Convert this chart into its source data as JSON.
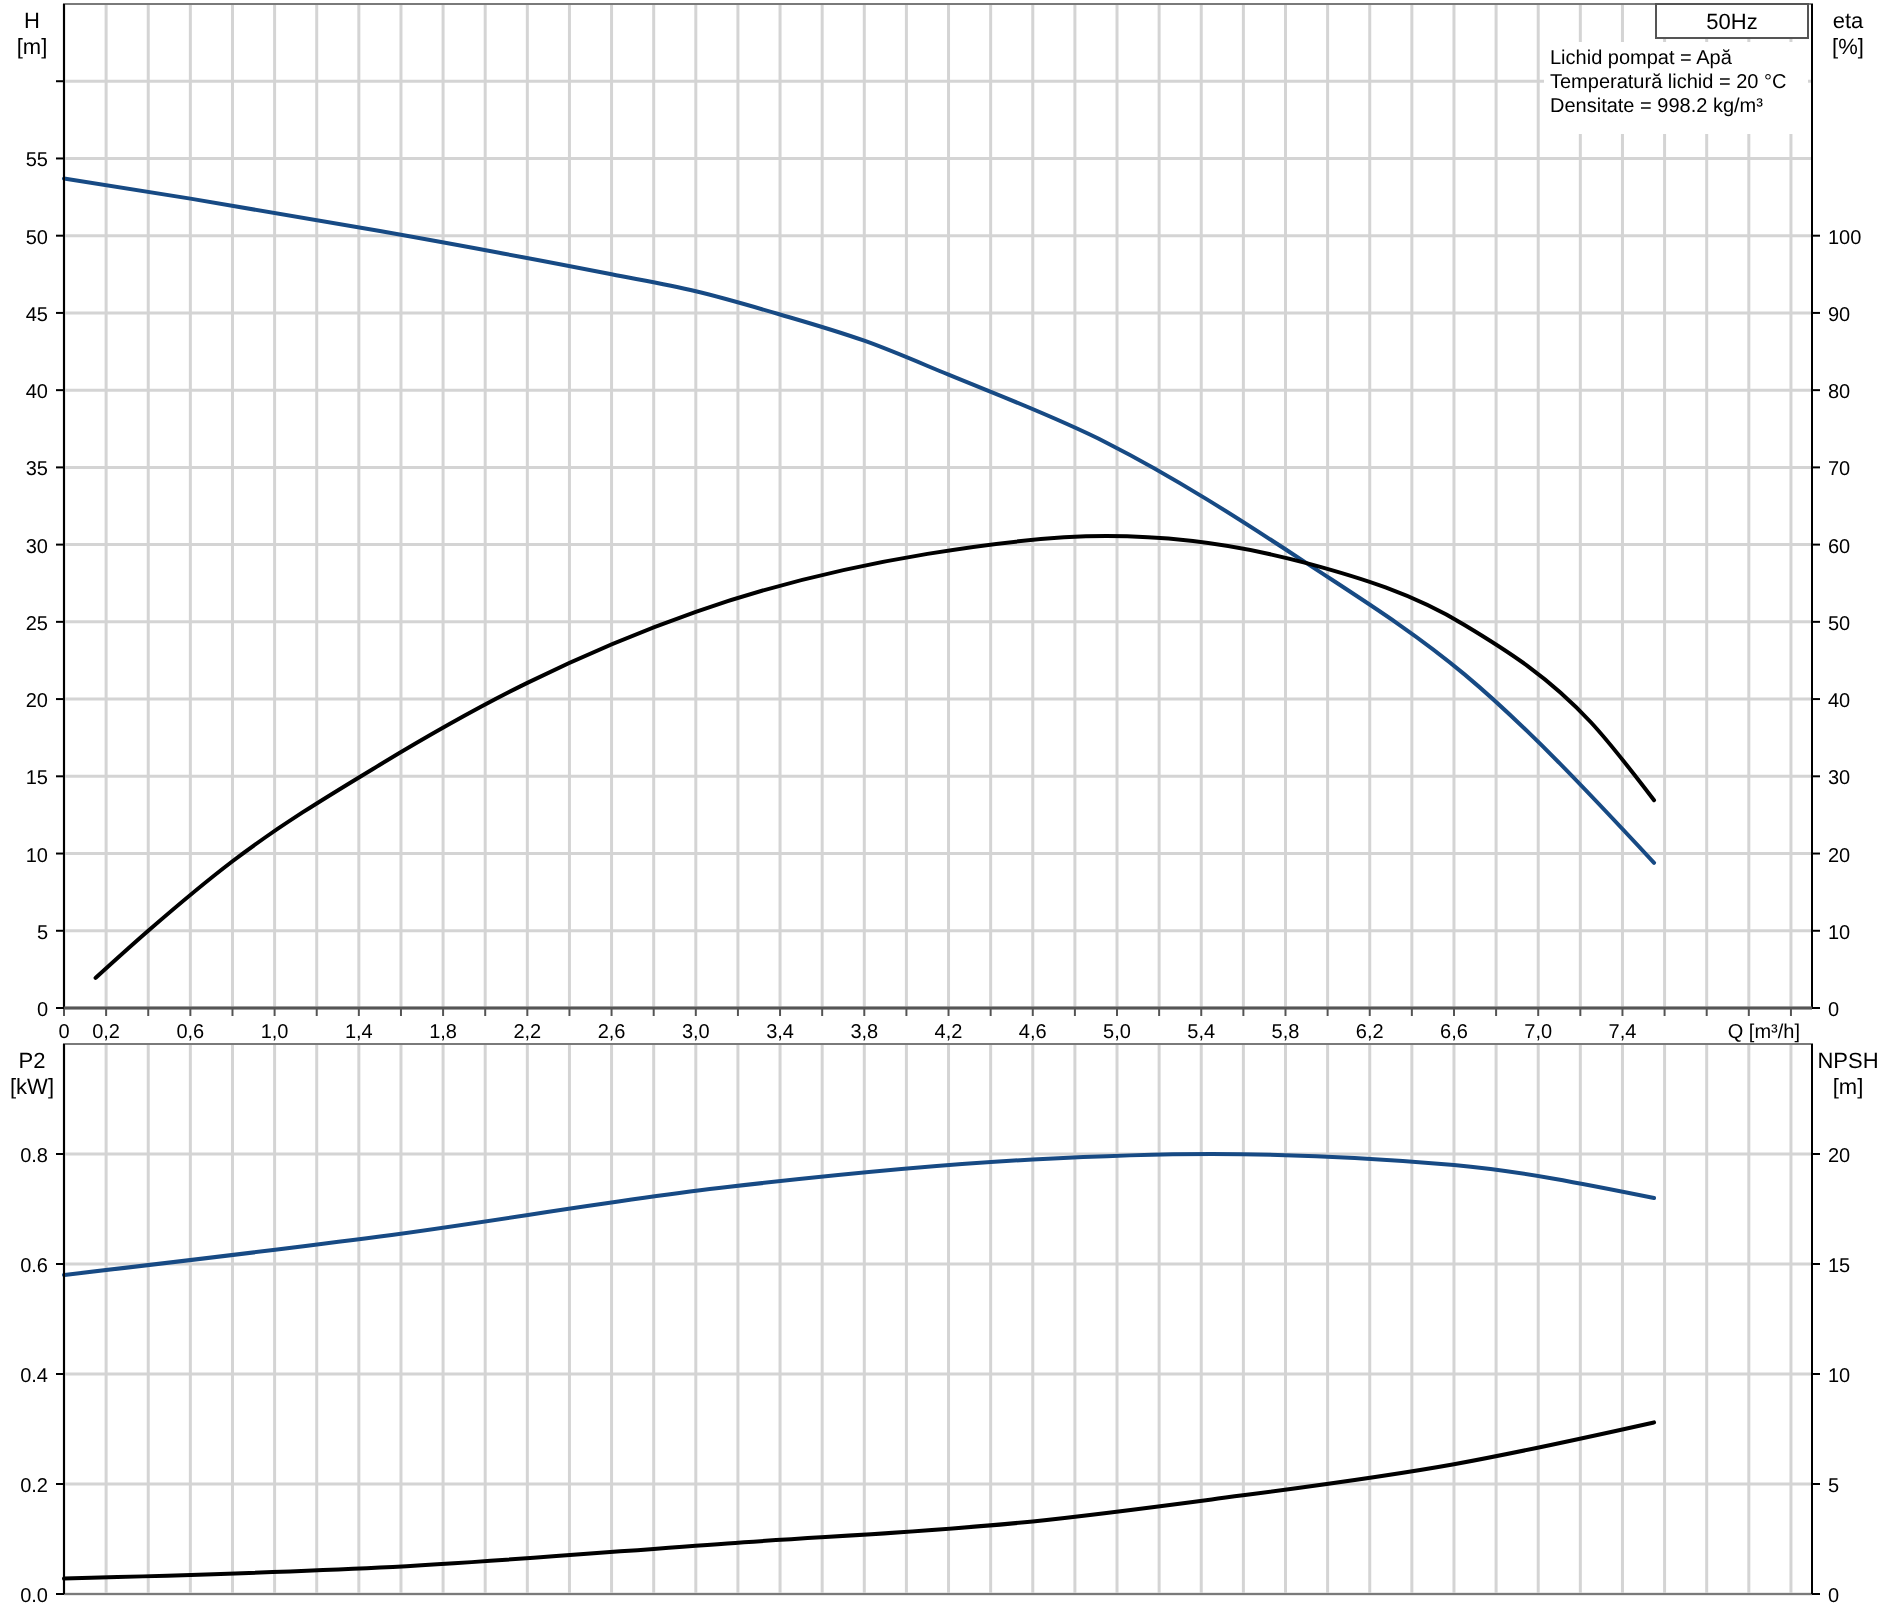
{
  "chart_data": [
    {
      "type": "line",
      "title": "50Hz",
      "xlabel": "Q [m³/h]",
      "ylabel": "H\n[m]",
      "y2label": "eta\n[%]",
      "xlim": [
        0,
        8.3
      ],
      "xticks": [
        {
          "value": 0,
          "label": "0"
        },
        {
          "value": 0.2,
          "label": "0,2"
        },
        {
          "value": 0.4,
          "label": null
        },
        {
          "value": 0.6,
          "label": "0,6"
        },
        {
          "value": 0.8,
          "label": null
        },
        {
          "value": 1.0,
          "label": "1,0"
        },
        {
          "value": 1.2,
          "label": null
        },
        {
          "value": 1.4,
          "label": "1,4"
        },
        {
          "value": 1.6,
          "label": null
        },
        {
          "value": 1.8,
          "label": "1,8"
        },
        {
          "value": 2.0,
          "label": null
        },
        {
          "value": 2.2,
          "label": "2,2"
        },
        {
          "value": 2.4,
          "label": null
        },
        {
          "value": 2.6,
          "label": "2,6"
        },
        {
          "value": 2.8,
          "label": null
        },
        {
          "value": 3.0,
          "label": "3,0"
        },
        {
          "value": 3.2,
          "label": null
        },
        {
          "value": 3.4,
          "label": "3,4"
        },
        {
          "value": 3.6,
          "label": null
        },
        {
          "value": 3.8,
          "label": "3,8"
        },
        {
          "value": 4.0,
          "label": null
        },
        {
          "value": 4.2,
          "label": "4,2"
        },
        {
          "value": 4.4,
          "label": null
        },
        {
          "value": 4.6,
          "label": "4,6"
        },
        {
          "value": 4.8,
          "label": null
        },
        {
          "value": 5.0,
          "label": "5,0"
        },
        {
          "value": 5.2,
          "label": null
        },
        {
          "value": 5.4,
          "label": "5,4"
        },
        {
          "value": 5.6,
          "label": null
        },
        {
          "value": 5.8,
          "label": "5,8"
        },
        {
          "value": 6.0,
          "label": null
        },
        {
          "value": 6.2,
          "label": "6,2"
        },
        {
          "value": 6.4,
          "label": null
        },
        {
          "value": 6.6,
          "label": "6,6"
        },
        {
          "value": 6.8,
          "label": null
        },
        {
          "value": 7.0,
          "label": "7,0"
        },
        {
          "value": 7.2,
          "label": null
        },
        {
          "value": 7.4,
          "label": "7,4"
        },
        {
          "value": 7.6,
          "label": null
        },
        {
          "value": 7.8,
          "label": null
        },
        {
          "value": 8.0,
          "label": null
        },
        {
          "value": 8.2,
          "label": null
        }
      ],
      "ylim": [
        0,
        65
      ],
      "yticks": [
        0,
        5,
        10,
        15,
        20,
        25,
        30,
        35,
        40,
        45,
        50,
        55,
        {
          "value": 60,
          "label": null
        }
      ],
      "y2lim": [
        0,
        130
      ],
      "y2ticks": [
        0,
        10,
        20,
        30,
        40,
        50,
        60,
        70,
        80,
        90,
        100
      ],
      "grid": true,
      "line_style": "solid",
      "annotations": [
        "Lichid pompat = Apă",
        "Temperatură lichid = 20 °C",
        "Densitate = 998.2 kg/m³"
      ],
      "series": [
        {
          "color": "#174a84",
          "axis": "y",
          "x": [
            0,
            0.6,
            1.5,
            2.6,
            3.0,
            3.4,
            3.8,
            4.2,
            4.95,
            5.9,
            6.65,
            7.55
          ],
          "values": [
            53.7,
            52.4,
            50.3,
            47.5,
            46.4,
            44.9,
            43.2,
            41.0,
            36.6,
            28.8,
            21.6,
            9.4
          ]
        },
        {
          "color": "#000000",
          "axis": "y2",
          "x": [
            0.15,
            0.4,
            0.8,
            1.5,
            2.2,
            3.0,
            4.1,
            4.95,
            5.9,
            6.65,
            7.25,
            7.55
          ],
          "values": [
            3.9,
            10,
            19,
            31.5,
            42.1,
            51.3,
            58.8,
            61.1,
            57.6,
            49.6,
            37.0,
            26.9
          ]
        }
      ]
    },
    {
      "type": "line",
      "xlim": [
        0,
        8.3
      ],
      "tick_labels": "y",
      "ylabel": "P2\n[kW]",
      "y2label": "NPSH\n[m]",
      "xticks": [
        0,
        0.2,
        0.4,
        0.6,
        0.8,
        1.0,
        1.2,
        1.4,
        1.6,
        1.8,
        2.0,
        2.2,
        2.4,
        2.6,
        2.8,
        3.0,
        3.2,
        3.4,
        3.6,
        3.8,
        4.0,
        4.2,
        4.4,
        4.6,
        4.8,
        5.0,
        5.2,
        5.4,
        5.6,
        5.8,
        6.0,
        6.2,
        6.4,
        6.6,
        6.8,
        7.0,
        7.2,
        7.4,
        7.6,
        7.8,
        8.0,
        8.2
      ],
      "ylim": [
        0,
        1.0
      ],
      "yticks": [
        {
          "value": 0,
          "label": "0.0"
        },
        0.2,
        0.4,
        0.6,
        0.8
      ],
      "y2lim": [
        0,
        25
      ],
      "y2ticks": [
        0,
        5,
        10,
        15,
        20
      ],
      "grid": true,
      "line_style": "solid",
      "series": [
        {
          "color": "#174a84",
          "axis": "y",
          "x": [
            0,
            1.5,
            3.15,
            4.6,
            5.45,
            6.6,
            7.55
          ],
          "values": [
            0.58,
            0.65,
            0.74,
            0.79,
            0.8,
            0.78,
            0.72
          ]
        },
        {
          "color": "#000000",
          "axis": "y2",
          "x": [
            0,
            1.5,
            3.15,
            4.6,
            5.45,
            6.6,
            7.55
          ],
          "values": [
            0.7,
            1.2,
            2.3,
            3.3,
            4.3,
            5.9,
            7.8
          ]
        }
      ]
    }
  ]
}
